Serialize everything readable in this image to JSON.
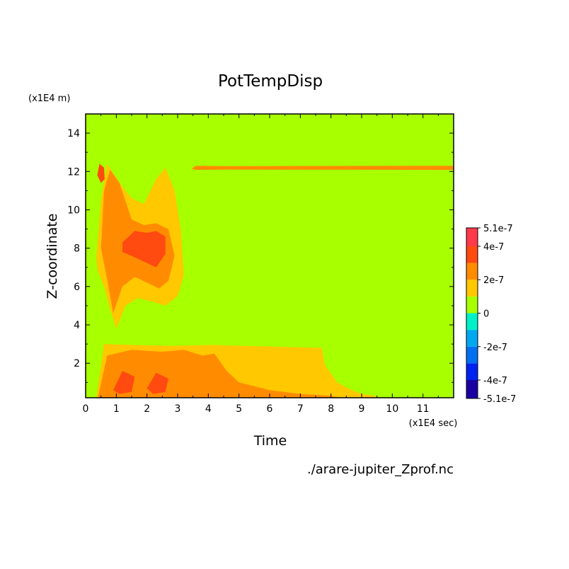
{
  "chart_data": {
    "type": "heatmap",
    "title": "PotTempDisp",
    "xlabel": "Time",
    "ylabel": "Z-coordinate",
    "x_unit": "(x1E4 sec)",
    "y_unit": "(x1E4 m)",
    "footer": "./arare-jupiter_Zprof.nc",
    "xlim": [
      0,
      12
    ],
    "ylim": [
      0.2,
      15
    ],
    "x_ticks": [
      0,
      1,
      2,
      3,
      4,
      5,
      6,
      7,
      8,
      9,
      10,
      11
    ],
    "y_ticks": [
      2,
      4,
      6,
      8,
      10,
      12,
      14
    ],
    "colorbar": {
      "min": -5.1e-07,
      "max": 5.1e-07,
      "labels": [
        "5.1e-7",
        "4e-7",
        "2e-7",
        "0",
        "-2e-7",
        "-4e-7",
        "-5.1e-7"
      ],
      "label_values": [
        5.1e-07,
        4e-07,
        2e-07,
        0,
        -2e-07,
        -4e-07,
        -5.1e-07
      ],
      "levels": [
        -5.1e-07,
        -4e-07,
        -3e-07,
        -2e-07,
        -1e-07,
        0,
        1e-07,
        2e-07,
        3e-07,
        4e-07,
        5.1e-07
      ],
      "colors": [
        "#1a00a0",
        "#0022f0",
        "#0070f0",
        "#00a8f0",
        "#00f0c8",
        "#a8ff00",
        "#ffc800",
        "#ff8c00",
        "#ff4a10",
        "#ff3a4a"
      ]
    },
    "regions": [
      {
        "level": 1,
        "label": "upper-band",
        "x": [
          0.35,
          0.5,
          0.7,
          0.9,
          1.2,
          1.5,
          1.9,
          2.3,
          2.6,
          2.9,
          3.1,
          3.2,
          3.0,
          2.6,
          2.2,
          1.7,
          1.3,
          1.0,
          0.8,
          0.6,
          0.4
        ],
        "y": [
          7.5,
          10.5,
          12.4,
          11.9,
          11.2,
          10.6,
          10.3,
          11.6,
          12.2,
          11.0,
          9.0,
          6.6,
          5.5,
          5.0,
          5.2,
          5.4,
          5.0,
          3.8,
          4.8,
          6.0,
          6.8
        ]
      },
      {
        "level": 2,
        "label": "upper-orange",
        "x": [
          0.5,
          0.6,
          0.8,
          1.1,
          1.5,
          1.9,
          2.3,
          2.7,
          2.9,
          2.7,
          2.4,
          2.0,
          1.6,
          1.2,
          0.9,
          0.7
        ],
        "y": [
          8.0,
          11.0,
          12.1,
          11.4,
          9.5,
          9.2,
          9.3,
          9.0,
          7.6,
          6.3,
          5.9,
          6.2,
          6.5,
          6.0,
          4.6,
          6.4
        ]
      },
      {
        "level": 3,
        "label": "upper-red-a",
        "x": [
          0.38,
          0.45,
          0.6,
          0.62,
          0.5
        ],
        "y": [
          11.8,
          12.4,
          12.2,
          11.6,
          11.4
        ]
      },
      {
        "level": 3,
        "label": "upper-red-b",
        "x": [
          1.2,
          1.6,
          2.0,
          2.3,
          2.6,
          2.6,
          2.3,
          1.9,
          1.5,
          1.2
        ],
        "y": [
          8.3,
          8.9,
          8.8,
          8.9,
          8.6,
          7.7,
          7.0,
          7.3,
          7.6,
          7.8
        ]
      },
      {
        "level": 1,
        "label": "lower-band",
        "x": [
          0.35,
          0.6,
          1.5,
          2.8,
          4.1,
          5.2,
          6.5,
          7.7,
          7.8,
          8.2,
          8.6,
          9.0,
          9.4,
          9.6,
          0.35
        ],
        "y": [
          0.2,
          3.0,
          2.95,
          2.9,
          2.95,
          2.9,
          2.85,
          2.8,
          1.9,
          1.0,
          0.65,
          0.4,
          0.3,
          0.2,
          0.2
        ]
      },
      {
        "level": 2,
        "label": "lower-orange",
        "x": [
          0.4,
          0.7,
          1.5,
          2.5,
          3.2,
          3.8,
          4.2,
          4.6,
          5.0,
          6.0,
          7.0,
          8.0,
          8.3,
          0.4
        ],
        "y": [
          0.2,
          2.4,
          2.7,
          2.6,
          2.7,
          2.4,
          2.5,
          1.6,
          1.0,
          0.6,
          0.4,
          0.3,
          0.2,
          0.2
        ]
      },
      {
        "level": 3,
        "label": "lower-red-a",
        "x": [
          0.9,
          1.2,
          1.6,
          1.5,
          1.1
        ],
        "y": [
          0.6,
          1.6,
          1.3,
          0.5,
          0.4
        ]
      },
      {
        "level": 3,
        "label": "lower-red-b",
        "x": [
          2.0,
          2.3,
          2.7,
          2.6,
          2.2
        ],
        "y": [
          0.7,
          1.5,
          1.2,
          0.5,
          0.4
        ]
      },
      {
        "level": 2,
        "label": "stripe",
        "x": [
          3.45,
          3.6,
          4.6,
          12.0,
          12.0,
          4.6,
          3.6,
          3.45
        ],
        "y": [
          12.15,
          12.3,
          12.28,
          12.3,
          12.08,
          12.1,
          12.08,
          12.15
        ]
      }
    ]
  }
}
